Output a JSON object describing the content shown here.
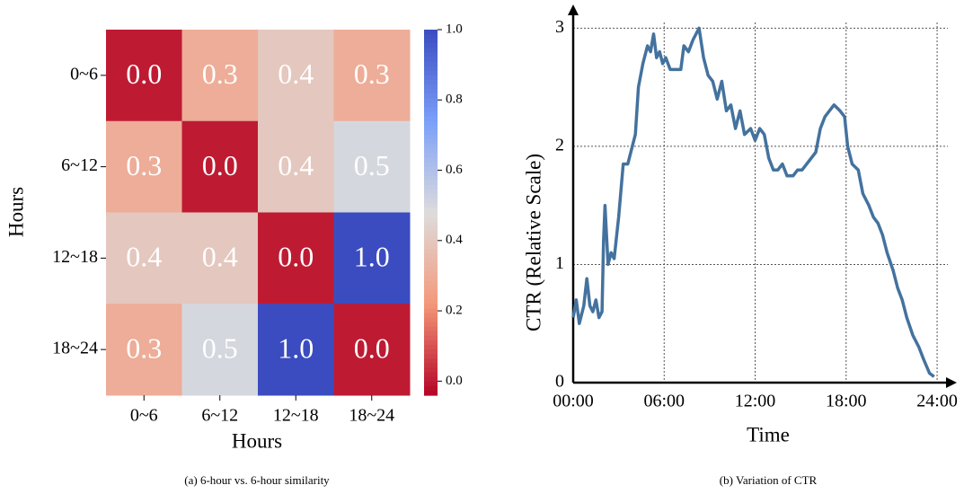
{
  "chart_data": [
    {
      "type": "heatmap",
      "caption": "(a) 6-hour vs. 6-hour similarity",
      "x_label": "Hours",
      "y_label": "Hours",
      "x_categories": [
        "0~6",
        "6~12",
        "12~18",
        "18~24"
      ],
      "y_categories": [
        "0~6",
        "6~12",
        "12~18",
        "18~24"
      ],
      "values": [
        [
          0,
          0.3,
          0.4,
          0.3
        ],
        [
          0.3,
          0,
          0.4,
          0.5
        ],
        [
          0.4,
          0.4,
          0,
          1
        ],
        [
          0.3,
          0.5,
          1,
          0
        ]
      ],
      "value_labels": [
        [
          "0.0",
          "0.3",
          "0.4",
          "0.3"
        ],
        [
          "0.3",
          "0.0",
          "0.4",
          "0.5"
        ],
        [
          "0.4",
          "0.4",
          "0.0",
          "1.0"
        ],
        [
          "0.3",
          "0.5",
          "1.0",
          "0.0"
        ]
      ],
      "colors": [
        "#b40426",
        "#f4987a",
        "#dddcdc",
        "#7b9ff9",
        "#3b4cc0"
      ],
      "zlim": [
        -0.04,
        1.0
      ],
      "zticks": [
        {
          "value": 0,
          "label": "0.0"
        },
        {
          "value": 0.2,
          "label": "0.2"
        },
        {
          "value": 0.4,
          "label": "0.4"
        },
        {
          "value": 0.6,
          "label": "0.6"
        },
        {
          "value": 0.8,
          "label": "0.8"
        },
        {
          "value": 1,
          "label": "1.0"
        }
      ]
    },
    {
      "type": "line",
      "caption": "(b) Variation of CTR",
      "x_label": "Time",
      "y_label": "CTR (Relative Scale)",
      "color": "#44729e",
      "grid": true,
      "xlim": [
        0,
        25.3
      ],
      "ylim": [
        0,
        3.2
      ],
      "xticks": [
        {
          "value": 0,
          "label": "00:00"
        },
        {
          "value": 6,
          "label": "06:00"
        },
        {
          "value": 12,
          "label": "12:00"
        },
        {
          "value": 18,
          "label": "18:00"
        },
        {
          "value": 24,
          "label": "24:00"
        }
      ],
      "yticks": [
        0,
        1,
        2,
        3
      ],
      "x": [
        0.0,
        0.2,
        0.4,
        0.7,
        0.9,
        1.1,
        1.3,
        1.5,
        1.7,
        1.9,
        2.0,
        2.1,
        2.3,
        2.5,
        2.7,
        3.0,
        3.3,
        3.6,
        3.9,
        4.1,
        4.3,
        4.6,
        4.9,
        5.1,
        5.3,
        5.5,
        5.7,
        5.9,
        6.1,
        6.4,
        6.8,
        7.1,
        7.3,
        7.6,
        7.9,
        8.3,
        8.6,
        8.9,
        9.2,
        9.5,
        9.8,
        10.1,
        10.4,
        10.7,
        11.0,
        11.3,
        11.7,
        12.0,
        12.3,
        12.6,
        12.9,
        13.2,
        13.5,
        13.8,
        14.1,
        14.5,
        14.8,
        15.1,
        15.4,
        15.7,
        16.0,
        16.3,
        16.6,
        16.9,
        17.2,
        17.6,
        17.9,
        18.1,
        18.4,
        18.8,
        19.1,
        19.5,
        19.8,
        20.1,
        20.4,
        20.7,
        21.1,
        21.4,
        21.7,
        22.0,
        22.4,
        22.8,
        23.1,
        23.5,
        23.8
      ],
      "values": [
        0.55,
        0.7,
        0.5,
        0.65,
        0.88,
        0.65,
        0.6,
        0.7,
        0.55,
        0.6,
        1.2,
        1.5,
        1.0,
        1.1,
        1.05,
        1.4,
        1.85,
        1.85,
        2.0,
        2.1,
        2.5,
        2.7,
        2.85,
        2.8,
        2.95,
        2.75,
        2.8,
        2.7,
        2.75,
        2.65,
        2.65,
        2.65,
        2.85,
        2.8,
        2.9,
        3.0,
        2.75,
        2.6,
        2.55,
        2.4,
        2.55,
        2.3,
        2.35,
        2.15,
        2.3,
        2.1,
        2.15,
        2.05,
        2.15,
        2.1,
        1.9,
        1.8,
        1.8,
        1.85,
        1.75,
        1.75,
        1.8,
        1.8,
        1.85,
        1.9,
        1.95,
        2.15,
        2.25,
        2.3,
        2.35,
        2.3,
        2.25,
        2.0,
        1.85,
        1.8,
        1.6,
        1.5,
        1.4,
        1.35,
        1.25,
        1.1,
        0.95,
        0.8,
        0.7,
        0.55,
        0.4,
        0.3,
        0.2,
        0.08,
        0.05
      ]
    }
  ]
}
